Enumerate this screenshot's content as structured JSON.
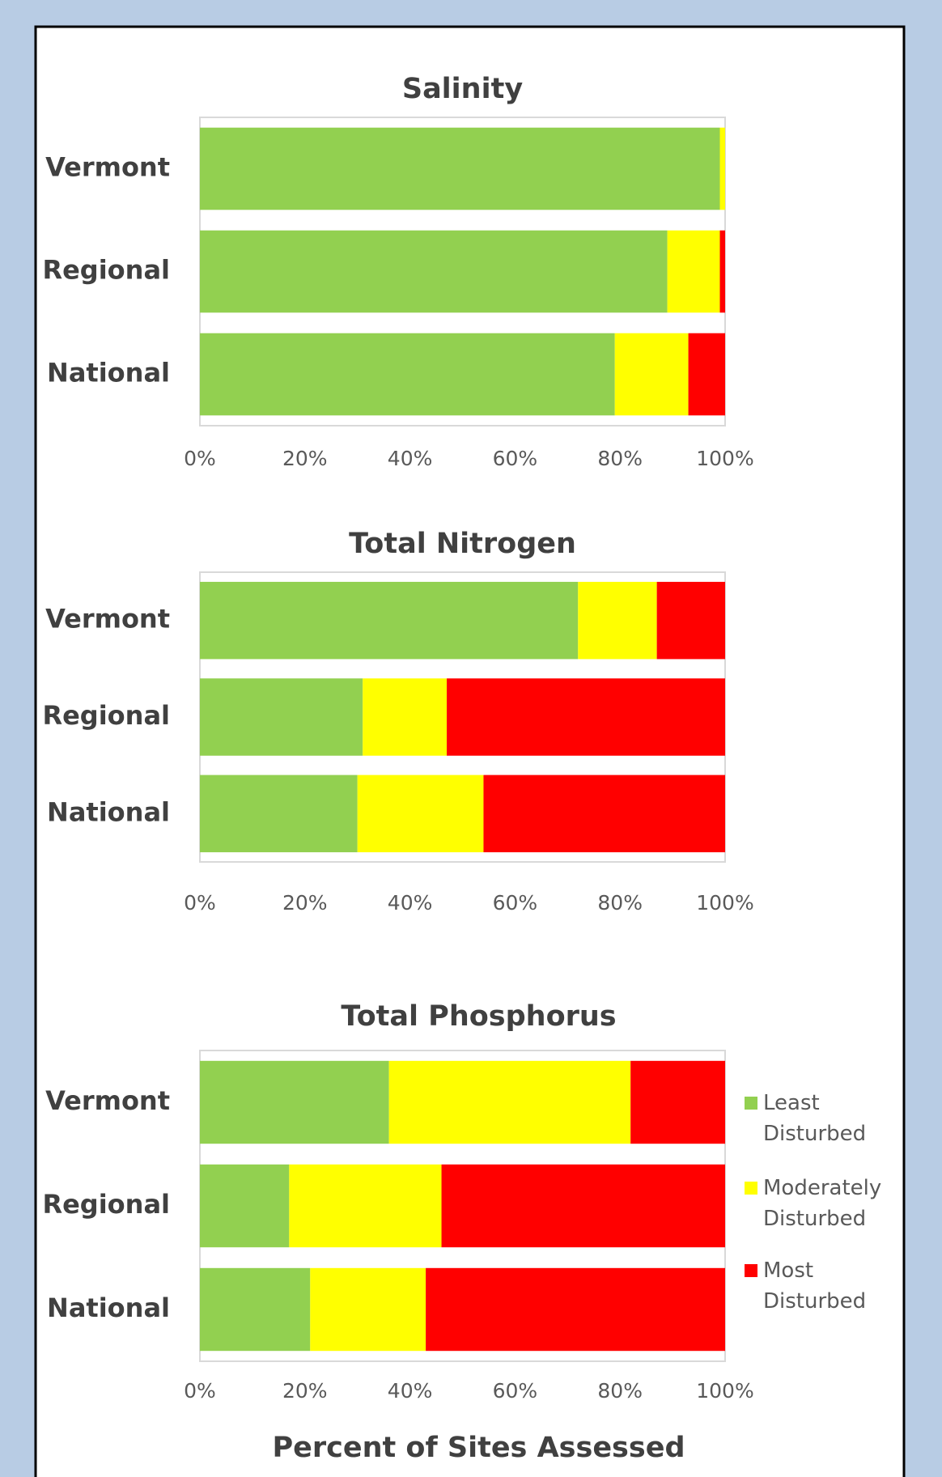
{
  "chart_data": [
    {
      "type": "bar",
      "orientation": "horizontal",
      "stacked": true,
      "title": "Salinity",
      "categories": [
        "Vermont",
        "Regional",
        "National"
      ],
      "series": [
        {
          "name": "Least Disturbed",
          "color": "#92d050",
          "values": [
            99,
            89,
            79
          ]
        },
        {
          "name": "Moderately Disturbed",
          "color": "#ffff00",
          "values": [
            1,
            10,
            14
          ]
        },
        {
          "name": "Most Disturbed",
          "color": "#ff0000",
          "values": [
            0,
            1,
            7
          ]
        }
      ],
      "xlim": [
        0,
        100
      ],
      "xticks": [
        {
          "value": 0,
          "label": "0%"
        },
        {
          "value": 20,
          "label": "20%"
        },
        {
          "value": 40,
          "label": "40%"
        },
        {
          "value": 60,
          "label": "60%"
        },
        {
          "value": 80,
          "label": "80%"
        },
        {
          "value": 100,
          "label": "100%"
        }
      ]
    },
    {
      "type": "bar",
      "orientation": "horizontal",
      "stacked": true,
      "title": "Total Nitrogen",
      "categories": [
        "Vermont",
        "Regional",
        "National"
      ],
      "series": [
        {
          "name": "Least Disturbed",
          "color": "#92d050",
          "values": [
            72,
            31,
            30
          ]
        },
        {
          "name": "Moderately Disturbed",
          "color": "#ffff00",
          "values": [
            15,
            16,
            24
          ]
        },
        {
          "name": "Most Disturbed",
          "color": "#ff0000",
          "values": [
            13,
            53,
            46
          ]
        }
      ],
      "xlim": [
        0,
        100
      ],
      "xticks": [
        {
          "value": 0,
          "label": "0%"
        },
        {
          "value": 20,
          "label": "20%"
        },
        {
          "value": 40,
          "label": "40%"
        },
        {
          "value": 60,
          "label": "60%"
        },
        {
          "value": 80,
          "label": "80%"
        },
        {
          "value": 100,
          "label": "100%"
        }
      ]
    },
    {
      "type": "bar",
      "orientation": "horizontal",
      "stacked": true,
      "title": "Total Phosphorus",
      "categories": [
        "Vermont",
        "Regional",
        "National"
      ],
      "series": [
        {
          "name": "Least Disturbed",
          "color": "#92d050",
          "values": [
            36,
            17,
            21
          ]
        },
        {
          "name": "Moderately Disturbed",
          "color": "#ffff00",
          "values": [
            46,
            29,
            22
          ]
        },
        {
          "name": "Most Disturbed",
          "color": "#ff0000",
          "values": [
            18,
            54,
            57
          ]
        }
      ],
      "xlim": [
        0,
        100
      ],
      "xticks": [
        {
          "value": 0,
          "label": "0%"
        },
        {
          "value": 20,
          "label": "20%"
        },
        {
          "value": 40,
          "label": "40%"
        },
        {
          "value": 60,
          "label": "60%"
        },
        {
          "value": 80,
          "label": "80%"
        },
        {
          "value": 100,
          "label": "100%"
        }
      ],
      "xlabel": "Percent of Sites Assessed",
      "legend": "right"
    }
  ]
}
